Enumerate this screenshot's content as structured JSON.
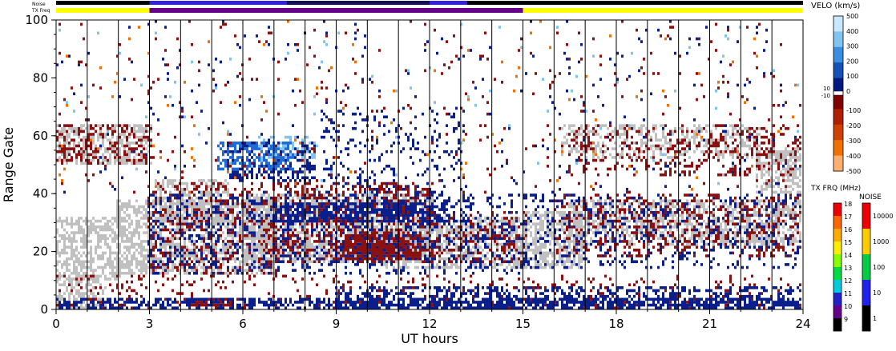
{
  "chart_data": {
    "type": "heatmap",
    "title": "",
    "xlabel": "UT hours",
    "ylabel": "Range Gate",
    "xlim": [
      0,
      24
    ],
    "ylim": [
      0,
      100
    ],
    "x_ticks": [
      "0",
      "3",
      "6",
      "9",
      "12",
      "15",
      "18",
      "21",
      "24"
    ],
    "y_ticks": [
      "0",
      "20",
      "40",
      "60",
      "80",
      "100"
    ],
    "vertical_scan_lines_every_hours": 1,
    "top_bars": {
      "noise_label": "Noise",
      "txfreq_label": "TX Freq",
      "noise_segments": [
        {
          "start": 0,
          "end": 3,
          "color": "#000000"
        },
        {
          "start": 3,
          "end": 7.4,
          "color": "#3322dd"
        },
        {
          "start": 7.4,
          "end": 12,
          "color": "#111155"
        },
        {
          "start": 12,
          "end": 13.2,
          "color": "#3322dd"
        },
        {
          "start": 13.2,
          "end": 24,
          "color": "#000000"
        }
      ],
      "txfreq_segments": [
        {
          "start": 0,
          "end": 3,
          "color": "#ffff00"
        },
        {
          "start": 3,
          "end": 15,
          "color": "#660088"
        },
        {
          "start": 15,
          "end": 24,
          "color": "#ffff00"
        }
      ]
    },
    "velocity_colorbar": {
      "label": "VELO (km/s)",
      "ticks": [
        "500",
        "400",
        "300",
        "200",
        "100",
        "0",
        "-100",
        "-200",
        "-300",
        "-400",
        "-500"
      ],
      "center_labels": [
        "10",
        "-10"
      ],
      "colors": [
        "#c8e8ff",
        "#80c4f0",
        "#3a8ee0",
        "#1452b8",
        "#001a80",
        "#800000",
        "#b02000",
        "#d04000",
        "#f07000",
        "#ffb070"
      ]
    },
    "freq_colorbar": {
      "label": "TX FRQ (MHz)",
      "ticks": [
        "18",
        "17",
        "16",
        "15",
        "14",
        "13",
        "12",
        "11",
        "10",
        "9"
      ],
      "colors": [
        "#ee0000",
        "#ff6600",
        "#ffaa00",
        "#ffee00",
        "#88ff00",
        "#00dd44",
        "#00ccdd",
        "#2222cc",
        "#660088",
        "#000000"
      ]
    },
    "noise_colorbar": {
      "label": "NOISE",
      "ticks": [
        "10000",
        "1000",
        "100",
        "10",
        "1"
      ],
      "colors": [
        "#ee0000",
        "#ffcc00",
        "#00cc44",
        "#2222ee",
        "#000000"
      ]
    },
    "colors": {
      "ground_scatter": "#c0c0c0",
      "negative_velocity": "#8b1010",
      "positive_velocity": "#0a1e8c",
      "fast_positive": "#1d6ad8",
      "light_positive": "#7fc3ef",
      "orange": "#f07000"
    },
    "regions": [
      {
        "kind": "ground",
        "x0": 0,
        "x1": 3,
        "y0": 50,
        "y1": 64,
        "density": 0.5
      },
      {
        "kind": "ground",
        "x0": 0,
        "x1": 2,
        "y0": 10,
        "y1": 32,
        "density": 0.55
      },
      {
        "kind": "ground",
        "x0": 0,
        "x1": 1.5,
        "y0": 0,
        "y1": 12,
        "density": 0.5
      },
      {
        "kind": "ground",
        "x0": 2,
        "x1": 7,
        "y0": 12,
        "y1": 38,
        "density": 0.6
      },
      {
        "kind": "ground",
        "x0": 3.2,
        "x1": 5.5,
        "y0": 30,
        "y1": 45,
        "density": 0.45
      },
      {
        "kind": "ground",
        "x0": 6,
        "x1": 12,
        "y0": 16,
        "y1": 40,
        "density": 0.55
      },
      {
        "kind": "ground",
        "x0": 10.5,
        "x1": 15,
        "y0": 14,
        "y1": 32,
        "density": 0.5
      },
      {
        "kind": "ground",
        "x0": 15,
        "x1": 16.8,
        "y0": 14,
        "y1": 34,
        "density": 0.55
      },
      {
        "kind": "ground",
        "x0": 16.5,
        "x1": 24,
        "y0": 22,
        "y1": 38,
        "density": 0.5
      },
      {
        "kind": "ground",
        "x0": 16.3,
        "x1": 22.5,
        "y0": 52,
        "y1": 64,
        "density": 0.35
      },
      {
        "kind": "ground",
        "x0": 22.5,
        "x1": 24,
        "y0": 40,
        "y1": 56,
        "density": 0.55
      },
      {
        "kind": "neg",
        "x0": 0,
        "x1": 3,
        "y0": 50,
        "y1": 64,
        "density": 0.3
      },
      {
        "kind": "neg",
        "x0": 3,
        "x1": 7,
        "y0": 12,
        "y1": 44,
        "density": 0.22
      },
      {
        "kind": "neg",
        "x0": 7,
        "x1": 12,
        "y0": 16,
        "y1": 44,
        "density": 0.35
      },
      {
        "kind": "neg",
        "x0": 9.3,
        "x1": 11.6,
        "y0": 17,
        "y1": 26,
        "density": 0.8
      },
      {
        "kind": "neg",
        "x0": 4.3,
        "x1": 5.6,
        "y0": 1,
        "y1": 4,
        "density": 0.9
      },
      {
        "kind": "neg",
        "x0": 12,
        "x1": 15,
        "y0": 16,
        "y1": 34,
        "density": 0.25
      },
      {
        "kind": "neg",
        "x0": 16,
        "x1": 24,
        "y0": 18,
        "y1": 40,
        "density": 0.22
      },
      {
        "kind": "neg",
        "x0": 16.5,
        "x1": 24,
        "y0": 46,
        "y1": 64,
        "density": 0.2
      },
      {
        "kind": "neg",
        "x0": 0,
        "x1": 24,
        "y0": 0,
        "y1": 12,
        "density": 0.1
      },
      {
        "kind": "pos",
        "x0": 0,
        "x1": 24,
        "y0": 0,
        "y1": 4,
        "density": 0.55
      },
      {
        "kind": "pos",
        "x0": 9,
        "x1": 24,
        "y0": 0,
        "y1": 8,
        "density": 0.35
      },
      {
        "kind": "pos",
        "x0": 7,
        "x1": 12.5,
        "y0": 30,
        "y1": 37,
        "density": 0.5
      },
      {
        "kind": "pos",
        "x0": 5.5,
        "x1": 8.2,
        "y0": 44,
        "y1": 58,
        "density": 0.4
      },
      {
        "kind": "pos",
        "x0": 8.5,
        "x1": 13,
        "y0": 28,
        "y1": 70,
        "density": 0.12
      },
      {
        "kind": "pos",
        "x0": 3,
        "x1": 15,
        "y0": 12,
        "y1": 40,
        "density": 0.2
      },
      {
        "kind": "pos",
        "x0": 15,
        "x1": 24,
        "y0": 14,
        "y1": 40,
        "density": 0.15
      },
      {
        "kind": "fast",
        "x0": 5.2,
        "x1": 7.5,
        "y0": 48,
        "y1": 58,
        "density": 0.45
      },
      {
        "kind": "light",
        "x0": 6.5,
        "x1": 8.3,
        "y0": 52,
        "y1": 60,
        "density": 0.25
      },
      {
        "kind": "sparse",
        "x0": 0,
        "x1": 24,
        "y0": 40,
        "y1": 100,
        "density": 0.04
      }
    ]
  }
}
